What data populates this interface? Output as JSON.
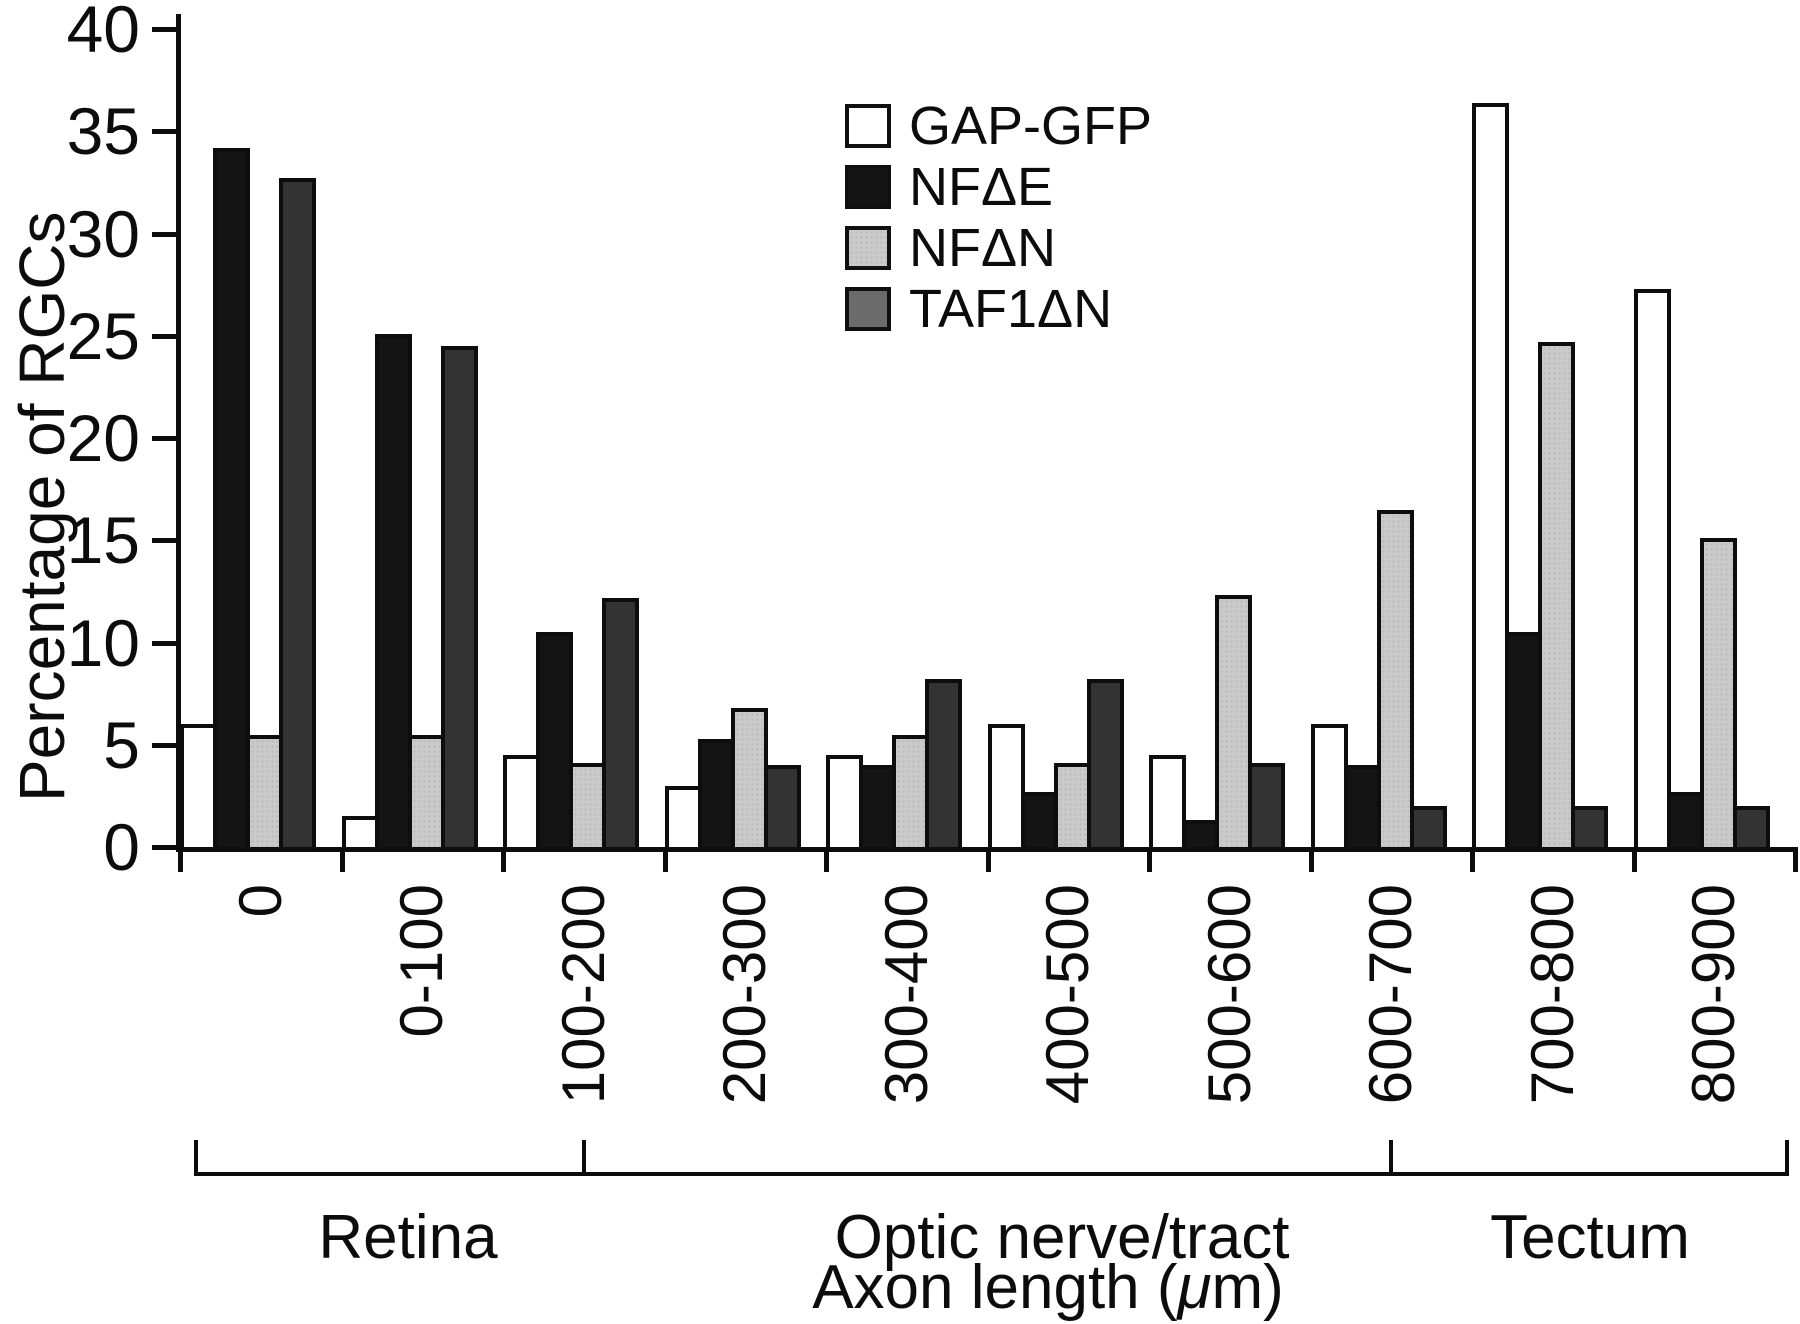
{
  "figure": {
    "x_axis": {
      "title": "Axon length (μm)",
      "title_pre": "Axon length (",
      "title_mu": "μ",
      "title_post": "m)"
    }
  },
  "chart_data": {
    "type": "bar",
    "title": "",
    "xlabel": "Axon length (μm)",
    "ylabel": "Percentage of RGCs",
    "ylim": [
      0,
      40
    ],
    "ytick_step": 5,
    "grid": "off",
    "legend_position": "upper-middle-inside",
    "categories": [
      "0",
      "0-100",
      "100-200",
      "200-300",
      "300-400",
      "400-500",
      "500-600",
      "600-700",
      "700-800",
      "800-900"
    ],
    "series": [
      {
        "name": "GAP-GFP",
        "color": "#ffffff",
        "border": "#0d0d0d",
        "values": [
          6.0,
          1.5,
          4.5,
          3.0,
          4.5,
          6.0,
          4.5,
          6.0,
          36.4,
          27.3
        ]
      },
      {
        "name": "NFΔE",
        "color": "#141414",
        "border": "#0d0d0d",
        "values": [
          34.2,
          25.1,
          10.5,
          5.3,
          4.0,
          2.7,
          1.3,
          4.0,
          10.5,
          2.7
        ]
      },
      {
        "name": "NFΔN",
        "color": "#cacaca",
        "border": "#0d0d0d",
        "texture": "dots",
        "values": [
          5.5,
          5.5,
          4.1,
          6.8,
          5.5,
          4.1,
          12.3,
          16.5,
          24.7,
          15.1
        ]
      },
      {
        "name": "TAF1ΔN",
        "color": "#333333",
        "legend_color": "#6b6b6b",
        "border": "#0d0d0d",
        "values": [
          32.7,
          24.5,
          12.2,
          4.0,
          8.2,
          8.2,
          4.1,
          2.0,
          2.0,
          2.0
        ]
      }
    ],
    "regions": [
      {
        "label": "Retina",
        "from_category": 0,
        "to_category": 2.5
      },
      {
        "label": "Optic nerve/tract",
        "from_category": 2.5,
        "to_category": 7.5
      },
      {
        "label": "Tectum",
        "from_category": 7.5,
        "to_category": 10
      }
    ]
  }
}
